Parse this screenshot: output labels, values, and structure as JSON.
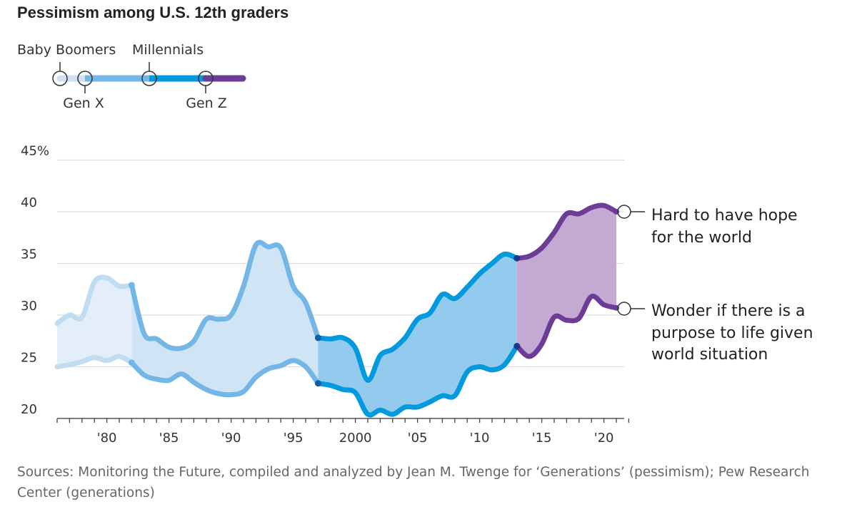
{
  "chart_data": {
    "type": "area",
    "title": "Pessimism among U.S. 12th graders",
    "ylim": [
      20,
      45
    ],
    "y_ticks": [
      20,
      25,
      30,
      35,
      40,
      45
    ],
    "y_tick_labels": [
      "20",
      "25",
      "30",
      "35",
      "40",
      "45%"
    ],
    "xlim": [
      1976,
      2022
    ],
    "x_ticks": [
      1980,
      1985,
      1990,
      1995,
      2000,
      2005,
      2010,
      2015,
      2020
    ],
    "x_tick_labels": [
      "'80",
      "'85",
      "'90",
      "'95",
      "2000",
      "'05",
      "'10",
      "'15",
      "'20"
    ],
    "grid": "horizontal",
    "series": [
      {
        "name": "Hard to have hope for the world",
        "points": [
          [
            1976,
            29.2
          ],
          [
            1977,
            30.0
          ],
          [
            1978,
            29.8
          ],
          [
            1979,
            33.2
          ],
          [
            1980,
            33.6
          ],
          [
            1981,
            32.8
          ],
          [
            1982,
            32.9
          ],
          [
            1983,
            28.2
          ],
          [
            1984,
            27.7
          ],
          [
            1985,
            26.9
          ],
          [
            1986,
            26.8
          ],
          [
            1987,
            27.5
          ],
          [
            1988,
            29.6
          ],
          [
            1989,
            29.6
          ],
          [
            1990,
            30.0
          ],
          [
            1991,
            32.8
          ],
          [
            1992,
            36.8
          ],
          [
            1993,
            36.6
          ],
          [
            1994,
            36.5
          ],
          [
            1995,
            32.8
          ],
          [
            1996,
            31.2
          ],
          [
            1997,
            27.8
          ],
          [
            1998,
            27.7
          ],
          [
            1999,
            27.8
          ],
          [
            2000,
            26.8
          ],
          [
            2001,
            23.7
          ],
          [
            2002,
            26.1
          ],
          [
            2003,
            26.7
          ],
          [
            2004,
            27.8
          ],
          [
            2005,
            29.6
          ],
          [
            2006,
            30.2
          ],
          [
            2007,
            32.0
          ],
          [
            2008,
            31.6
          ],
          [
            2009,
            32.7
          ],
          [
            2010,
            34.0
          ],
          [
            2011,
            35.0
          ],
          [
            2012,
            35.9
          ],
          [
            2013,
            35.5
          ],
          [
            2014,
            35.7
          ],
          [
            2015,
            36.5
          ],
          [
            2016,
            38.0
          ],
          [
            2017,
            39.8
          ],
          [
            2018,
            39.8
          ],
          [
            2019,
            40.4
          ],
          [
            2020,
            40.6
          ],
          [
            2021,
            40.0
          ]
        ]
      },
      {
        "name": "Wonder if there is a purpose to life given world situation",
        "points": [
          [
            1976,
            25.0
          ],
          [
            1977,
            25.2
          ],
          [
            1978,
            25.5
          ],
          [
            1979,
            25.9
          ],
          [
            1980,
            25.6
          ],
          [
            1981,
            26.0
          ],
          [
            1982,
            25.4
          ],
          [
            1983,
            24.2
          ],
          [
            1984,
            23.8
          ],
          [
            1985,
            23.7
          ],
          [
            1986,
            24.3
          ],
          [
            1987,
            23.5
          ],
          [
            1988,
            22.8
          ],
          [
            1989,
            22.4
          ],
          [
            1990,
            22.3
          ],
          [
            1991,
            22.6
          ],
          [
            1992,
            24.0
          ],
          [
            1993,
            24.8
          ],
          [
            1994,
            25.1
          ],
          [
            1995,
            25.6
          ],
          [
            1996,
            25.0
          ],
          [
            1997,
            23.4
          ],
          [
            1998,
            23.2
          ],
          [
            1999,
            22.8
          ],
          [
            2000,
            22.5
          ],
          [
            2001,
            20.4
          ],
          [
            2002,
            20.8
          ],
          [
            2003,
            20.4
          ],
          [
            2004,
            21.1
          ],
          [
            2005,
            21.1
          ],
          [
            2006,
            21.6
          ],
          [
            2007,
            22.2
          ],
          [
            2008,
            22.2
          ],
          [
            2009,
            24.5
          ],
          [
            2010,
            25.0
          ],
          [
            2011,
            24.7
          ],
          [
            2012,
            25.2
          ],
          [
            2013,
            27.0
          ],
          [
            2014,
            26.0
          ],
          [
            2015,
            27.2
          ],
          [
            2016,
            29.8
          ],
          [
            2017,
            29.5
          ],
          [
            2018,
            29.7
          ],
          [
            2019,
            31.8
          ],
          [
            2020,
            31.0
          ],
          [
            2021,
            30.7
          ]
        ]
      }
    ],
    "generations": [
      {
        "name": "Baby Boomers",
        "start": 1976,
        "end": 1982,
        "line_color": "#bfdcf1",
        "fill_color": "#e4eef8",
        "marker_color": "#d4e6f4"
      },
      {
        "name": "Gen X",
        "start": 1982,
        "end": 1997,
        "line_color": "#74b7e6",
        "fill_color": "#cfe4f5",
        "marker_color": "#74b7e6"
      },
      {
        "name": "Millennials",
        "start": 1997,
        "end": 2013,
        "line_color": "#0399dd",
        "fill_color": "#93cbee",
        "marker_color": "#0b5fa9"
      },
      {
        "name": "Gen Z",
        "start": 2013,
        "end": 2021,
        "line_color": "#6c3d96",
        "fill_color": "#c4a9d3",
        "marker_color": "#163a85"
      }
    ],
    "annotations": {
      "hope": [
        "Hard to have hope",
        "for the world"
      ],
      "purpose": [
        "Wonder if there is a",
        "purpose to life given",
        "world situation"
      ]
    }
  },
  "legend": {
    "baby_boomers": "Baby Boomers",
    "millennials": "Millennials",
    "gen_x": "Gen X",
    "gen_z": "Gen Z"
  },
  "source": {
    "line1": "Sources: Monitoring the Future, compiled and analyzed by Jean M. Twenge for ‘Generations’ (pessimism); Pew Research",
    "line2": "Center (generations)"
  }
}
